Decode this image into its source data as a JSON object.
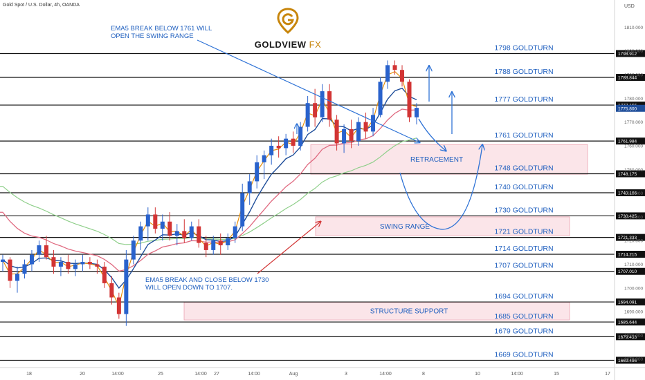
{
  "header": {
    "ticker": "Gold Spot / U.S. Dollar, 4h, OANDA",
    "currency": "USD"
  },
  "logo": {
    "name": "GOLDVIEW",
    "suffix": "FX",
    "icon": "location-pin-icon",
    "color": "#c8860c"
  },
  "notes": [
    "EMA5 BREAK BELOW 1761 WILL OPEN THE SWING RANGE",
    "EMA5 BREAK AND CLOSE BELOW 1730 WILL OPEN DOWN TO 1707."
  ],
  "chart_data": {
    "type": "candlestick",
    "title": "Gold Spot / U.S. Dollar, 4h, OANDA",
    "yaxis": {
      "unit": "USD",
      "range": [
        1667,
        1818
      ],
      "ticks": [
        1670,
        1680,
        1690,
        1700,
        1710,
        1720,
        1730,
        1740,
        1750,
        1760,
        1770,
        1780,
        1790,
        1800,
        1810
      ]
    },
    "xaxis": {
      "labels": [
        "18",
        "20",
        "14:00",
        "25",
        "14:00",
        "27",
        "14:00",
        "Aug",
        "3",
        "14:00",
        "8",
        "10",
        "14:00",
        "15",
        "17"
      ]
    },
    "levels": [
      {
        "label": "1798 GOLDTURN",
        "value": 1798.912,
        "tag": "1798.912"
      },
      {
        "label": "1788 GOLDTURN",
        "value": 1788.844,
        "tag": "1788.844"
      },
      {
        "label": "1777 GOLDTURN",
        "value": 1777.166,
        "tag": "1777.166"
      },
      {
        "label": "1761 GOLDTURN",
        "value": 1761.984,
        "tag": "1761.984"
      },
      {
        "label": "1748 GOLDTURN",
        "value": 1748.175,
        "tag": "1748.175"
      },
      {
        "label": "1740 GOLDTURN",
        "value": 1740.166,
        "tag": "1740.166"
      },
      {
        "label": "1730 GOLDTURN",
        "value": 1730.425,
        "tag": "1730.425"
      },
      {
        "label": "1721 GOLDTURN",
        "value": 1721.333,
        "tag": "1721.333"
      },
      {
        "label": "1714 GOLDTURN",
        "value": 1714.215,
        "tag": "1714.215"
      },
      {
        "label": "1707 GOLDTURN",
        "value": 1707.01,
        "tag": "1707.010"
      },
      {
        "label": "1694 GOLDTURN",
        "value": 1694.091,
        "tag": "1694.091"
      },
      {
        "label": "1685 GOLDTURN",
        "value": 1685.644,
        "tag": "1685.644"
      },
      {
        "label": "1679 GOLDTURN",
        "value": 1679.433,
        "tag": "1679.433"
      },
      {
        "label": "1669 GOLDTURN",
        "value": 1669.496,
        "tag": "1669.496"
      }
    ],
    "current_price": {
      "value": 1775.8,
      "tag": "1775.800",
      "color": "#1f4e9a"
    },
    "zones": [
      {
        "label": "RETRACEMENT",
        "top": 1760.5,
        "bottom": 1748.0
      },
      {
        "label": "SWING RANGE",
        "top": 1730.0,
        "bottom": 1722.0
      },
      {
        "label": "STRUCTURE SUPPORT",
        "top": 1694.0,
        "bottom": 1686.5
      }
    ],
    "candles": [
      [
        1711,
        1714,
        1707,
        1712
      ],
      [
        1712,
        1713,
        1700,
        1703
      ],
      [
        1703,
        1709,
        1698,
        1706
      ],
      [
        1706,
        1712,
        1704,
        1710
      ],
      [
        1710,
        1716,
        1707,
        1714
      ],
      [
        1714,
        1720,
        1711,
        1718
      ],
      [
        1718,
        1722,
        1712,
        1713
      ],
      [
        1713,
        1716,
        1706,
        1709
      ],
      [
        1709,
        1713,
        1705,
        1711
      ],
      [
        1711,
        1714,
        1706,
        1708
      ],
      [
        1708,
        1712,
        1705,
        1710
      ],
      [
        1710,
        1714,
        1707,
        1711
      ],
      [
        1711,
        1713,
        1708,
        1710
      ],
      [
        1710,
        1712,
        1706,
        1709
      ],
      [
        1709,
        1711,
        1700,
        1702
      ],
      [
        1702,
        1705,
        1693,
        1696
      ],
      [
        1696,
        1698,
        1687,
        1689
      ],
      [
        1689,
        1716,
        1684,
        1712
      ],
      [
        1712,
        1722,
        1710,
        1720
      ],
      [
        1720,
        1728,
        1716,
        1726
      ],
      [
        1726,
        1734,
        1720,
        1731
      ],
      [
        1731,
        1734,
        1723,
        1725
      ],
      [
        1725,
        1731,
        1720,
        1728
      ],
      [
        1728,
        1732,
        1720,
        1722
      ],
      [
        1722,
        1727,
        1718,
        1724
      ],
      [
        1724,
        1729,
        1719,
        1721
      ],
      [
        1721,
        1728,
        1720,
        1726
      ],
      [
        1726,
        1729,
        1717,
        1719
      ],
      [
        1719,
        1722,
        1713,
        1716
      ],
      [
        1716,
        1722,
        1714,
        1720
      ],
      [
        1720,
        1723,
        1714,
        1718
      ],
      [
        1718,
        1723,
        1716,
        1721
      ],
      [
        1721,
        1728,
        1719,
        1726
      ],
      [
        1726,
        1744,
        1724,
        1740
      ],
      [
        1740,
        1748,
        1735,
        1745
      ],
      [
        1745,
        1756,
        1742,
        1753
      ],
      [
        1753,
        1758,
        1746,
        1756
      ],
      [
        1756,
        1763,
        1752,
        1760
      ],
      [
        1760,
        1764,
        1755,
        1759
      ],
      [
        1759,
        1765,
        1756,
        1763
      ],
      [
        1763,
        1766,
        1757,
        1760
      ],
      [
        1760,
        1770,
        1758,
        1768
      ],
      [
        1768,
        1781,
        1766,
        1778
      ],
      [
        1778,
        1784,
        1768,
        1772
      ],
      [
        1772,
        1786,
        1770,
        1783
      ],
      [
        1783,
        1786,
        1768,
        1771
      ],
      [
        1771,
        1773,
        1758,
        1761
      ],
      [
        1761,
        1769,
        1757,
        1767
      ],
      [
        1767,
        1771,
        1759,
        1762
      ],
      [
        1762,
        1772,
        1760,
        1770
      ],
      [
        1770,
        1774,
        1763,
        1766
      ],
      [
        1766,
        1776,
        1764,
        1773
      ],
      [
        1773,
        1789,
        1772,
        1787
      ],
      [
        1787,
        1796,
        1784,
        1794
      ],
      [
        1794,
        1796,
        1790,
        1792
      ],
      [
        1792,
        1794,
        1785,
        1787
      ],
      [
        1787,
        1788,
        1770,
        1772
      ],
      [
        1772,
        1778,
        1769,
        1776
      ]
    ],
    "ema_short": {
      "color": "#e8900c"
    },
    "ema_mid": {
      "color": "#1f4e9a"
    },
    "ema_long": {
      "color": "#e06a80"
    },
    "sma_green": {
      "color": "#8fcf8a"
    }
  }
}
